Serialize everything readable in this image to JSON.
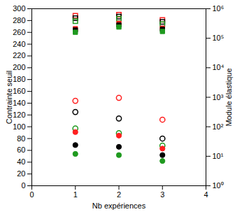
{
  "chart_data": {
    "type": "scatter",
    "x_label": "Nb expériences",
    "y_label": "Contrainte seuil",
    "y2_label": "Module élastique",
    "x": [
      1,
      2,
      3
    ],
    "xlim": [
      0,
      4
    ],
    "xticks": [
      0,
      1,
      2,
      3,
      4
    ],
    "ylim": [
      0,
      300
    ],
    "yticks": [
      0,
      20,
      40,
      60,
      80,
      100,
      120,
      140,
      160,
      180,
      200,
      220,
      240,
      260,
      280,
      300
    ],
    "y2lim": [
      1,
      1000000
    ],
    "y2ticks": [
      {
        "value": 1,
        "label": "10⁰"
      },
      {
        "value": 10,
        "label": "10¹"
      },
      {
        "value": 100,
        "label": "10²"
      },
      {
        "value": 1000,
        "label": "10³"
      },
      {
        "value": 10000,
        "label": "10⁴"
      },
      {
        "value": 100000,
        "label": "10⁵"
      },
      {
        "value": 1000000,
        "label": "10⁶"
      }
    ],
    "log": "y2",
    "grid": false,
    "series": [
      {
        "color": "#ff2020",
        "marker": "open-circle",
        "values": [
          144,
          149,
          112
        ]
      },
      {
        "color": "#000000",
        "marker": "open-circle",
        "values": [
          125,
          114,
          80
        ]
      },
      {
        "color": "#1f9a1f",
        "marker": "open-circle",
        "values": [
          97,
          89,
          68
        ]
      },
      {
        "color": "#ff2020",
        "marker": "circle",
        "values": [
          91,
          85,
          63
        ]
      },
      {
        "color": "#000000",
        "marker": "circle",
        "values": [
          69,
          66,
          52
        ]
      },
      {
        "color": "#1f9a1f",
        "marker": "circle",
        "values": [
          54,
          52,
          42
        ]
      },
      {
        "color": "#ff2020",
        "marker": "open-square",
        "axis": "y2",
        "values": [
          580000,
          630000,
          420000
        ]
      },
      {
        "color": "#000000",
        "marker": "open-square",
        "axis": "y2",
        "values": [
          480000,
          540000,
          360000
        ]
      },
      {
        "color": "#1f9a1f",
        "marker": "open-square",
        "axis": "y2",
        "values": [
          380000,
          460000,
          300000
        ]
      },
      {
        "color": "#ff2020",
        "marker": "square",
        "axis": "y2",
        "values": [
          210000,
          320000,
          220000
        ]
      },
      {
        "color": "#000000",
        "marker": "square",
        "axis": "y2",
        "values": [
          190000,
          280000,
          200000
        ]
      },
      {
        "color": "#1f9a1f",
        "marker": "square",
        "axis": "y2",
        "values": [
          160000,
          240000,
          170000
        ]
      }
    ]
  }
}
